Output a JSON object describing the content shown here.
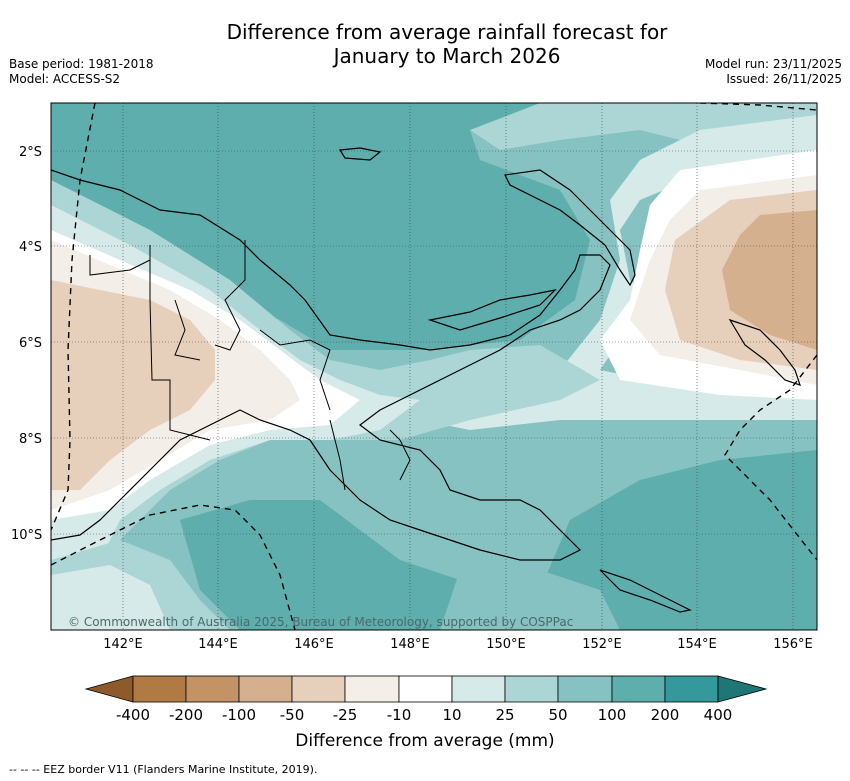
{
  "header": {
    "title_line1": "Difference from average rainfall forecast for",
    "title_line2": "January to March 2026",
    "base_period": "Base period: 1981-2018",
    "model": "Model: ACCESS-S2",
    "model_run": "Model run: 23/11/2025",
    "issued": "Issued: 26/11/2025"
  },
  "map": {
    "lat_labels": [
      "2°S",
      "4°S",
      "6°S",
      "8°S",
      "10°S"
    ],
    "lon_labels": [
      "142°E",
      "144°E",
      "146°E",
      "148°E",
      "150°E",
      "152°E",
      "154°E",
      "156°E"
    ],
    "copyright": "© Commonwealth of Australia 2025, Bureau of Meteorology, supported by COSPPac"
  },
  "legend": {
    "title": "Difference from average (mm)",
    "labels": [
      "-400",
      "-200",
      "-100",
      "-50",
      "-25",
      "-10",
      "10",
      "25",
      "50",
      "100",
      "200",
      "400"
    ],
    "colors": {
      "lt_minus400": "#8c5a2b",
      "minus400_minus200": "#b07a45",
      "minus200_minus100": "#c39366",
      "minus100_minus50": "#d4b08e",
      "minus50_minus25": "#e6cfbb",
      "minus25_minus10": "#f3eee8",
      "minus10_10": "#ffffff",
      "10_25": "#d6eae9",
      "25_50": "#acd6d5",
      "50_100": "#86c2c1",
      "100_200": "#5eaeae",
      "200_400": "#34999a",
      "gt_400": "#1f7676"
    }
  },
  "footer": {
    "eez_note": "--  --  -- EEZ border V11 (Flanders Marine Institute, 2019)."
  }
}
